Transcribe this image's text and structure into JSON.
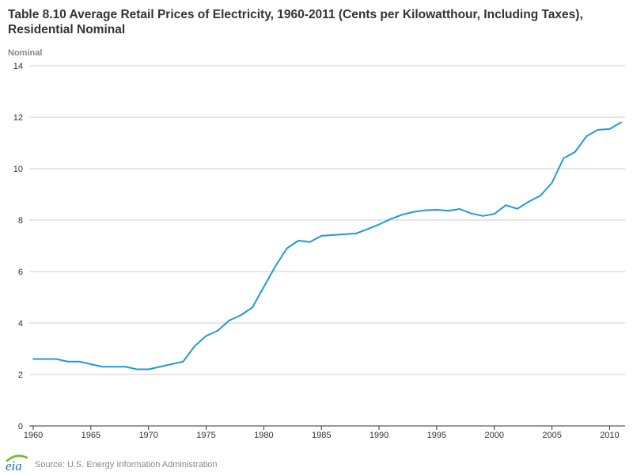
{
  "header": {
    "title": "Table 8.10 Average Retail Prices of Electricity, 1960-2011 (Cents per Kilowatthour, Including Taxes), Residential Nominal"
  },
  "footer": {
    "logo_text": "eia",
    "source": "Source: U.S. Energy Information Administration"
  },
  "colors": {
    "line": "#1f9bd1",
    "grid": "#cccccc",
    "axis": "#333333",
    "logo_blue": "#1f6fb4",
    "logo_green": "#77b82a"
  },
  "chart_data": {
    "type": "line",
    "title": "Table 8.10 Average Retail Prices of Electricity, 1960-2011 (Cents per Kilowatthour, Including Taxes), Residential Nominal",
    "ylabel": "Nominal",
    "xlabel": "",
    "xlim": [
      1960,
      2011
    ],
    "ylim": [
      0,
      14
    ],
    "xticks": [
      1960,
      1965,
      1970,
      1975,
      1980,
      1985,
      1990,
      1995,
      2000,
      2005,
      2010
    ],
    "yticks": [
      0,
      2,
      4,
      6,
      8,
      10,
      12,
      14
    ],
    "grid": "horizontal",
    "legend": "none",
    "x": [
      1960,
      1961,
      1962,
      1963,
      1964,
      1965,
      1966,
      1967,
      1968,
      1969,
      1970,
      1971,
      1972,
      1973,
      1974,
      1975,
      1976,
      1977,
      1978,
      1979,
      1980,
      1981,
      1982,
      1983,
      1984,
      1985,
      1986,
      1987,
      1988,
      1989,
      1990,
      1991,
      1992,
      1993,
      1994,
      1995,
      1996,
      1997,
      1998,
      1999,
      2000,
      2001,
      2002,
      2003,
      2004,
      2005,
      2006,
      2007,
      2008,
      2009,
      2010,
      2011
    ],
    "series": [
      {
        "values": [
          2.6,
          2.6,
          2.6,
          2.5,
          2.5,
          2.4,
          2.3,
          2.3,
          2.3,
          2.2,
          2.2,
          2.3,
          2.4,
          2.5,
          3.1,
          3.5,
          3.7,
          4.1,
          4.3,
          4.6,
          5.4,
          6.2,
          6.9,
          7.2,
          7.15,
          7.39,
          7.42,
          7.45,
          7.48,
          7.65,
          7.83,
          8.04,
          8.21,
          8.32,
          8.38,
          8.4,
          8.36,
          8.43,
          8.26,
          8.16,
          8.24,
          8.58,
          8.44,
          8.72,
          8.95,
          9.45,
          10.4,
          10.65,
          11.26,
          11.51,
          11.54,
          11.8
        ]
      }
    ]
  }
}
